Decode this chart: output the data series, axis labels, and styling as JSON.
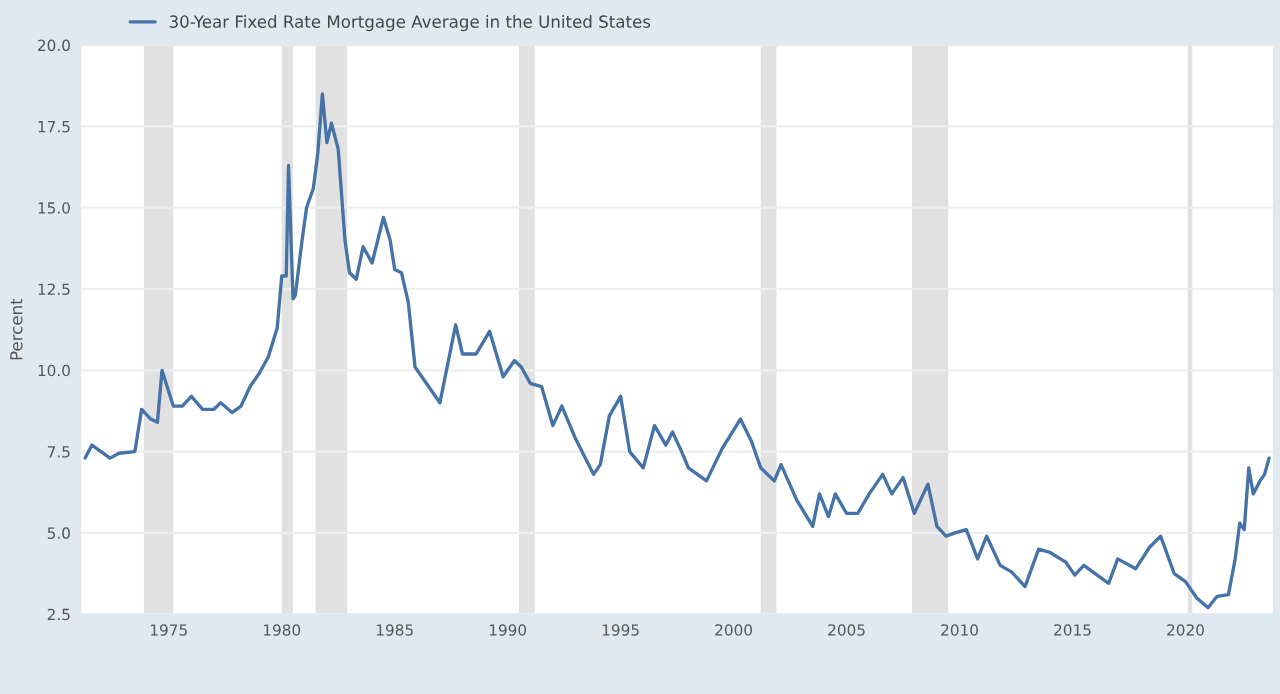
{
  "chart_data": {
    "type": "line",
    "ylabel": "Percent",
    "xlim": [
      1971.1,
      2023.9
    ],
    "ylim": [
      2.5,
      20.0
    ],
    "xticks": [
      1975,
      1980,
      1985,
      1990,
      1995,
      2000,
      2005,
      2010,
      2015,
      2020
    ],
    "yticks": [
      {
        "value": 2.5,
        "label": "2.5"
      },
      {
        "value": 5.0,
        "label": "5.0"
      },
      {
        "value": 7.5,
        "label": "7.5"
      },
      {
        "value": 10.0,
        "label": "10.0"
      },
      {
        "value": 12.5,
        "label": "12.5"
      },
      {
        "value": 15.0,
        "label": "15.0"
      },
      {
        "value": 17.5,
        "label": "17.5"
      },
      {
        "value": 20.0,
        "label": "20.0"
      }
    ],
    "grid": "y",
    "legend": "top left",
    "marker": "none",
    "line_style": "solid",
    "bands": [
      {
        "axis": "x",
        "from": 1973.9,
        "to": 1975.2,
        "color": "#e1e1e1"
      },
      {
        "axis": "x",
        "from": 1980.0,
        "to": 1980.5,
        "color": "#e1e1e1"
      },
      {
        "axis": "x",
        "from": 1981.5,
        "to": 1982.9,
        "color": "#e1e1e1"
      },
      {
        "axis": "x",
        "from": 1990.5,
        "to": 1991.2,
        "color": "#e1e1e1"
      },
      {
        "axis": "x",
        "from": 2001.2,
        "to": 2001.9,
        "color": "#e1e1e1"
      },
      {
        "axis": "x",
        "from": 2007.9,
        "to": 2009.5,
        "color": "#e1e1e1"
      },
      {
        "axis": "x",
        "from": 2020.1,
        "to": 2020.3,
        "color": "#e1e1e1"
      }
    ],
    "series": [
      {
        "name": "30-Year Fixed Rate Mortgage Average in the United States",
        "color": "#4572a7",
        "x": [
          1971.3,
          1971.6,
          1972.0,
          1972.4,
          1972.8,
          1973.5,
          1973.8,
          1974.2,
          1974.5,
          1974.7,
          1975.2,
          1975.6,
          1976.0,
          1976.5,
          1977.0,
          1977.3,
          1977.8,
          1978.2,
          1978.6,
          1979.0,
          1979.4,
          1979.8,
          1980.0,
          1980.2,
          1980.3,
          1980.5,
          1980.6,
          1980.9,
          1981.1,
          1981.4,
          1981.6,
          1981.8,
          1982.0,
          1982.2,
          1982.5,
          1982.8,
          1983.0,
          1983.3,
          1983.6,
          1984.0,
          1984.5,
          1984.8,
          1985.0,
          1985.3,
          1985.6,
          1985.9,
          1986.4,
          1987.0,
          1987.7,
          1988.0,
          1988.6,
          1989.2,
          1989.8,
          1990.3,
          1990.6,
          1991.0,
          1991.5,
          1992.0,
          1992.4,
          1993.0,
          1993.8,
          1994.1,
          1994.5,
          1995.0,
          1995.4,
          1996.0,
          1996.5,
          1997.0,
          1997.3,
          1997.7,
          1998.0,
          1998.8,
          1999.5,
          2000.3,
          2000.8,
          2001.2,
          2001.8,
          2002.1,
          2002.8,
          2003.5,
          2003.8,
          2004.2,
          2004.5,
          2005.0,
          2005.5,
          2006.0,
          2006.6,
          2007.0,
          2007.5,
          2008.0,
          2008.6,
          2009.0,
          2009.4,
          2009.8,
          2010.3,
          2010.8,
          2011.2,
          2011.8,
          2012.3,
          2012.9,
          2013.5,
          2014.0,
          2014.7,
          2015.1,
          2015.5,
          2016.6,
          2017.0,
          2017.8,
          2018.4,
          2018.9,
          2019.5,
          2020.0,
          2020.5,
          2021.0,
          2021.4,
          2021.9,
          2022.2,
          2022.4,
          2022.6,
          2022.8,
          2023.0,
          2023.3,
          2023.5,
          2023.7
        ],
        "values": [
          7.3,
          7.7,
          7.5,
          7.3,
          7.45,
          7.5,
          8.8,
          8.5,
          8.4,
          10.0,
          8.9,
          8.9,
          9.2,
          8.8,
          8.8,
          9.0,
          8.7,
          8.9,
          9.5,
          9.9,
          10.4,
          11.3,
          12.9,
          12.9,
          16.3,
          12.2,
          12.3,
          14.0,
          15.0,
          15.6,
          16.7,
          18.5,
          17.0,
          17.6,
          16.8,
          14.0,
          13.0,
          12.8,
          13.8,
          13.3,
          14.7,
          14.0,
          13.1,
          13.0,
          12.1,
          10.1,
          9.6,
          9.0,
          11.4,
          10.5,
          10.5,
          11.2,
          9.8,
          10.3,
          10.1,
          9.6,
          9.5,
          8.3,
          8.9,
          7.9,
          6.8,
          7.1,
          8.6,
          9.2,
          7.5,
          7.0,
          8.3,
          7.7,
          8.1,
          7.5,
          7.0,
          6.6,
          7.6,
          8.5,
          7.8,
          7.0,
          6.6,
          7.1,
          6.0,
          5.2,
          6.2,
          5.5,
          6.2,
          5.6,
          5.6,
          6.2,
          6.8,
          6.2,
          6.7,
          5.6,
          6.5,
          5.2,
          4.9,
          5.0,
          5.1,
          4.2,
          4.9,
          4.0,
          3.8,
          3.35,
          4.5,
          4.4,
          4.1,
          3.7,
          4.0,
          3.45,
          4.2,
          3.9,
          4.55,
          4.9,
          3.75,
          3.5,
          3.0,
          2.7,
          3.05,
          3.1,
          4.2,
          5.3,
          5.1,
          7.0,
          6.2,
          6.6,
          6.8,
          7.3
        ]
      }
    ]
  }
}
